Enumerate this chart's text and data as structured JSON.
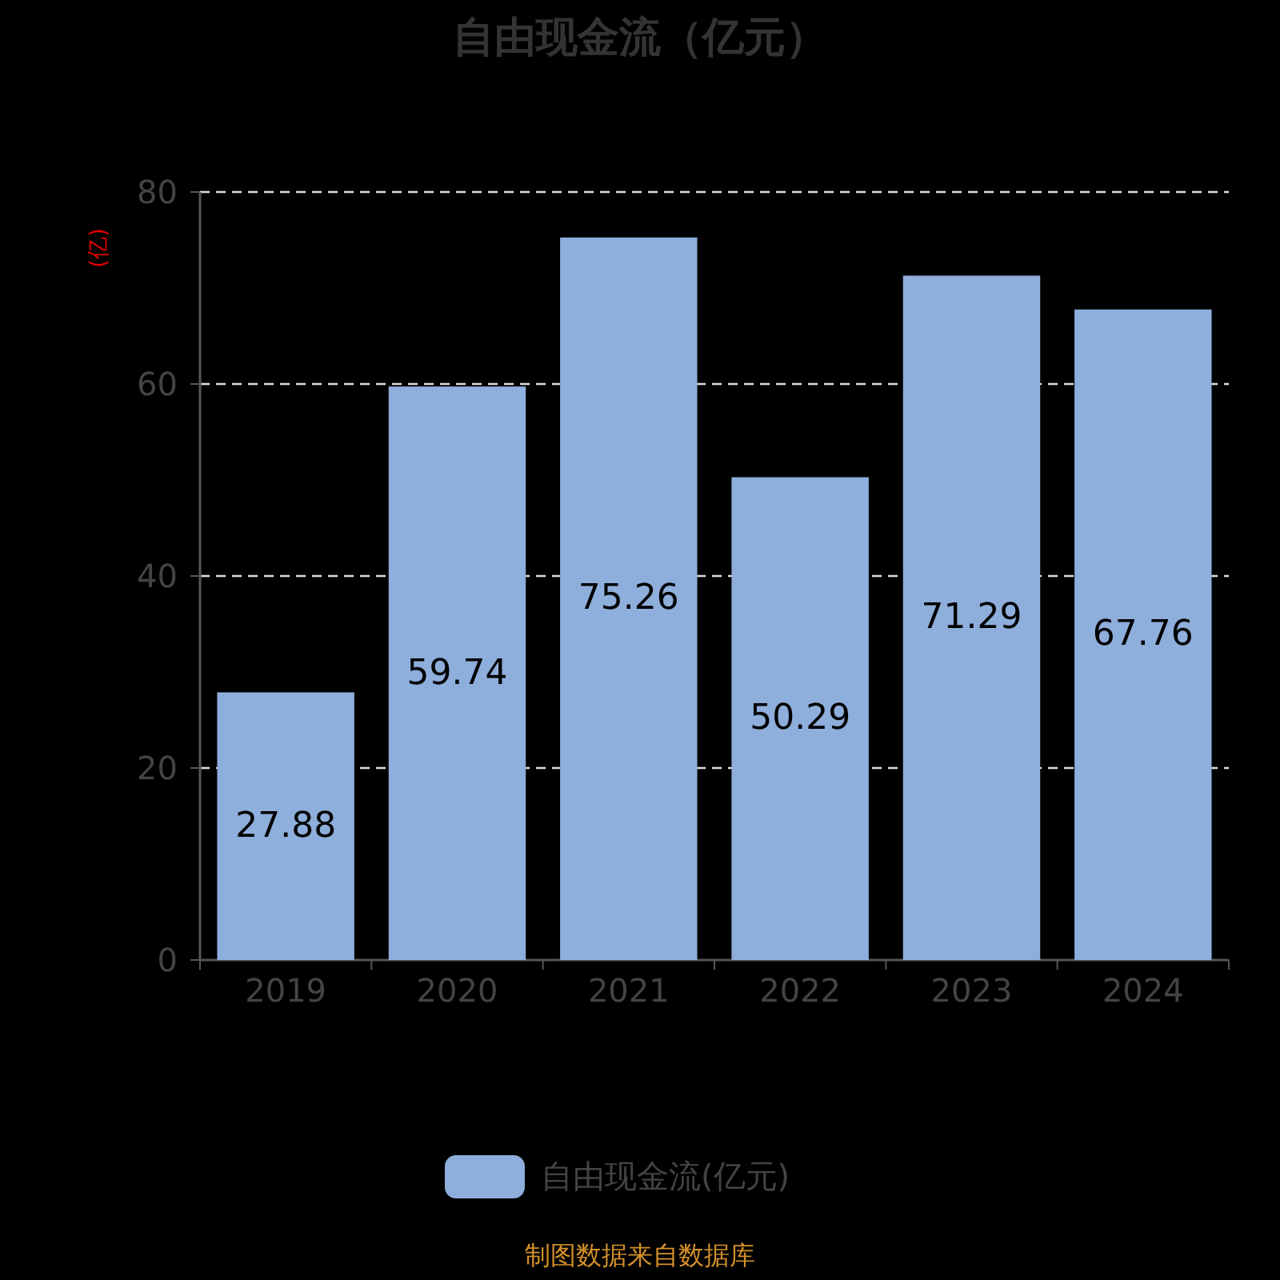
{
  "chart_data": {
    "type": "bar",
    "title": "自由现金流（亿元）",
    "ylabel": "(亿)",
    "categories": [
      "2019",
      "2020",
      "2021",
      "2022",
      "2023",
      "2024"
    ],
    "series": [
      {
        "name": "自由现金流(亿元)",
        "color": "#8eaedb",
        "values": [
          27.88,
          59.74,
          75.26,
          50.29,
          71.29,
          67.76
        ]
      }
    ],
    "ylim": [
      0,
      80
    ],
    "yticks": [
      0,
      20,
      40,
      60,
      80
    ],
    "grid": "y",
    "legend": "bottom",
    "data_labels": true,
    "annotations": [
      "制图数据来自数据库"
    ]
  }
}
